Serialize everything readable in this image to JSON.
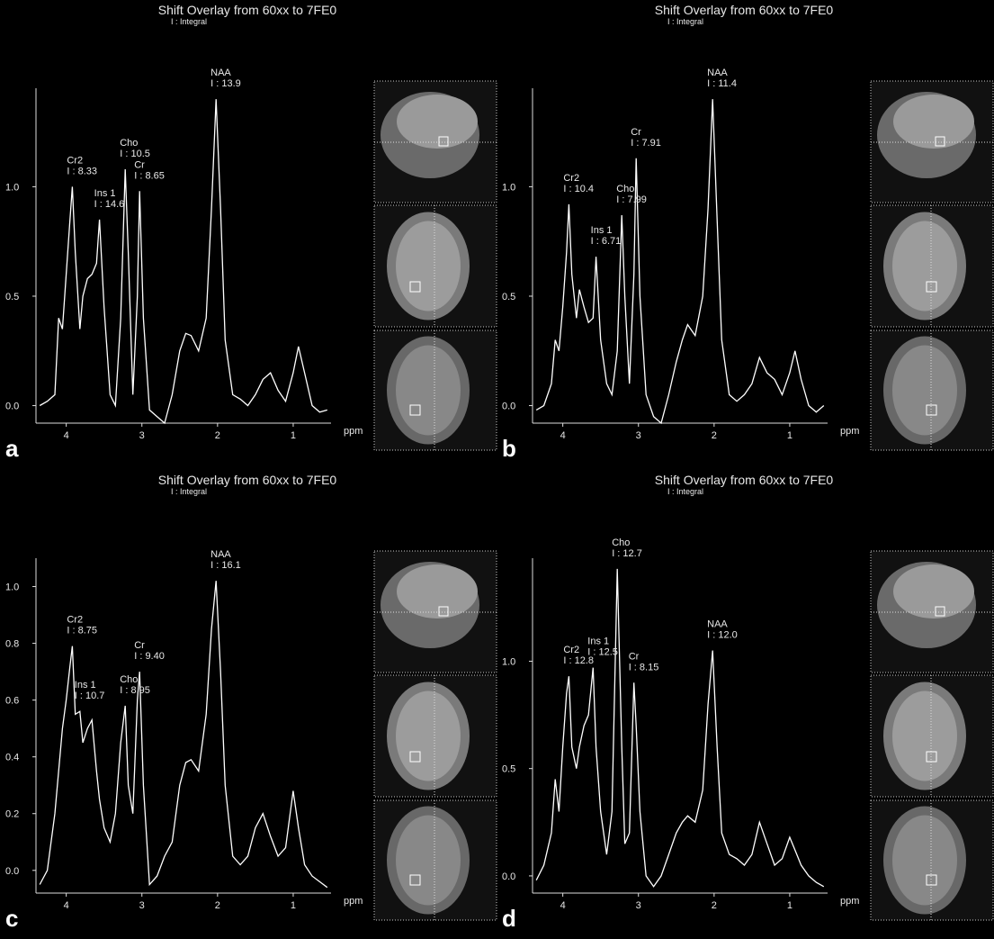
{
  "chart_data": [
    {
      "type": "line",
      "title": "Shift Overlay from 60xx to 7FE0",
      "subtitle": "I : Integral",
      "panel_label": "a",
      "x_label": "ppm",
      "color": "#ffffff",
      "xlim": [
        4.4,
        0.5
      ],
      "xticks": [
        4,
        3,
        2,
        1
      ],
      "ylim": [
        -0.08,
        1.45
      ],
      "yticks": [
        {
          "value": 0,
          "label": "0.0"
        },
        0.5,
        {
          "value": 1,
          "label": "1.0"
        }
      ],
      "x": [
        4.35,
        4.25,
        4.15,
        4.1,
        4.05,
        4.0,
        3.95,
        3.92,
        3.88,
        3.82,
        3.78,
        3.72,
        3.66,
        3.6,
        3.56,
        3.5,
        3.42,
        3.35,
        3.28,
        3.22,
        3.18,
        3.12,
        3.06,
        3.03,
        2.98,
        2.9,
        2.8,
        2.7,
        2.6,
        2.5,
        2.42,
        2.35,
        2.25,
        2.15,
        2.08,
        2.02,
        1.96,
        1.9,
        1.8,
        1.7,
        1.6,
        1.5,
        1.4,
        1.3,
        1.2,
        1.1,
        1.0,
        0.93,
        0.85,
        0.75,
        0.65,
        0.55
      ],
      "values": [
        0.0,
        0.02,
        0.05,
        0.4,
        0.35,
        0.6,
        0.85,
        1.0,
        0.7,
        0.35,
        0.5,
        0.58,
        0.6,
        0.65,
        0.85,
        0.45,
        0.05,
        0.0,
        0.4,
        1.08,
        0.7,
        0.05,
        0.5,
        0.98,
        0.4,
        -0.02,
        -0.05,
        -0.08,
        0.05,
        0.25,
        0.33,
        0.32,
        0.25,
        0.4,
        0.9,
        1.4,
        0.9,
        0.3,
        0.05,
        0.03,
        0.0,
        0.05,
        0.12,
        0.15,
        0.07,
        0.02,
        0.15,
        0.27,
        0.15,
        0.0,
        -0.03,
        -0.02
      ],
      "annotations": [
        {
          "name": "Cr2",
          "integral": "I : 8.33",
          "x": 3.92
        },
        {
          "name": "Ins 1",
          "integral": "I : 14.6",
          "x": 3.56
        },
        {
          "name": "Cho",
          "integral": "I : 10.5",
          "x": 3.22
        },
        {
          "name": "Cr",
          "integral": "I : 8.65",
          "x": 3.03
        },
        {
          "name": "NAA",
          "integral": "I : 13.9",
          "x": 2.02
        }
      ]
    },
    {
      "type": "line",
      "title": "Shift Overlay from 60xx to 7FE0",
      "subtitle": "I : Integral",
      "panel_label": "b",
      "x_label": "ppm",
      "color": "#ffffff",
      "xlim": [
        4.4,
        0.5
      ],
      "xticks": [
        4,
        3,
        2,
        1
      ],
      "ylim": [
        -0.08,
        1.45
      ],
      "yticks": [
        {
          "value": 0,
          "label": "0.0"
        },
        0.5,
        {
          "value": 1,
          "label": "1.0"
        }
      ],
      "x": [
        4.35,
        4.25,
        4.15,
        4.1,
        4.05,
        4.0,
        3.95,
        3.92,
        3.88,
        3.82,
        3.78,
        3.72,
        3.66,
        3.6,
        3.56,
        3.5,
        3.42,
        3.35,
        3.28,
        3.22,
        3.18,
        3.12,
        3.06,
        3.03,
        2.98,
        2.9,
        2.8,
        2.7,
        2.6,
        2.5,
        2.42,
        2.35,
        2.25,
        2.15,
        2.08,
        2.02,
        1.96,
        1.9,
        1.8,
        1.7,
        1.6,
        1.5,
        1.4,
        1.3,
        1.2,
        1.1,
        1.0,
        0.93,
        0.85,
        0.75,
        0.65,
        0.55
      ],
      "values": [
        -0.02,
        0.0,
        0.1,
        0.3,
        0.25,
        0.45,
        0.7,
        0.92,
        0.6,
        0.4,
        0.53,
        0.45,
        0.38,
        0.4,
        0.68,
        0.3,
        0.1,
        0.05,
        0.25,
        0.87,
        0.5,
        0.1,
        0.6,
        1.13,
        0.5,
        0.05,
        -0.05,
        -0.08,
        0.05,
        0.2,
        0.3,
        0.37,
        0.32,
        0.5,
        0.9,
        1.4,
        0.85,
        0.3,
        0.05,
        0.02,
        0.05,
        0.1,
        0.22,
        0.15,
        0.12,
        0.05,
        0.15,
        0.25,
        0.12,
        0.0,
        -0.03,
        0.0
      ],
      "annotations": [
        {
          "name": "Cr2",
          "integral": "I : 10.4",
          "x": 3.92
        },
        {
          "name": "Ins 1",
          "integral": "I : 6.71",
          "x": 3.56
        },
        {
          "name": "Cho",
          "integral": "I : 7.99",
          "x": 3.22
        },
        {
          "name": "Cr",
          "integral": "I : 7.91",
          "x": 3.03
        },
        {
          "name": "NAA",
          "integral": "I : 11.4",
          "x": 2.02
        }
      ]
    },
    {
      "type": "line",
      "title": "Shift Overlay from 60xx to 7FE0",
      "subtitle": "I : Integral",
      "panel_label": "c",
      "x_label": "ppm",
      "color": "#ffffff",
      "xlim": [
        4.4,
        0.5
      ],
      "xticks": [
        4,
        3,
        2,
        1
      ],
      "ylim": [
        -0.08,
        1.1
      ],
      "yticks": [
        {
          "value": 0,
          "label": "0.0"
        },
        0.2,
        0.4,
        0.6,
        0.8,
        {
          "value": 1,
          "label": "1.0"
        }
      ],
      "x": [
        4.35,
        4.25,
        4.15,
        4.1,
        4.05,
        4.0,
        3.95,
        3.92,
        3.88,
        3.82,
        3.78,
        3.72,
        3.66,
        3.6,
        3.56,
        3.5,
        3.42,
        3.35,
        3.28,
        3.22,
        3.18,
        3.12,
        3.06,
        3.03,
        2.98,
        2.9,
        2.8,
        2.7,
        2.6,
        2.5,
        2.42,
        2.35,
        2.25,
        2.15,
        2.08,
        2.02,
        1.96,
        1.9,
        1.8,
        1.7,
        1.6,
        1.5,
        1.4,
        1.3,
        1.2,
        1.1,
        1.0,
        0.93,
        0.85,
        0.75,
        0.65,
        0.55
      ],
      "values": [
        -0.05,
        0.0,
        0.2,
        0.35,
        0.5,
        0.6,
        0.72,
        0.79,
        0.55,
        0.56,
        0.45,
        0.5,
        0.53,
        0.35,
        0.25,
        0.15,
        0.1,
        0.2,
        0.45,
        0.58,
        0.3,
        0.2,
        0.6,
        0.7,
        0.3,
        -0.05,
        -0.02,
        0.05,
        0.1,
        0.3,
        0.38,
        0.39,
        0.35,
        0.55,
        0.85,
        1.02,
        0.7,
        0.3,
        0.05,
        0.02,
        0.05,
        0.15,
        0.2,
        0.12,
        0.05,
        0.08,
        0.28,
        0.15,
        0.02,
        -0.02,
        -0.04,
        -0.06
      ],
      "annotations": [
        {
          "name": "Cr2",
          "integral": "I : 8.75",
          "x": 3.92
        },
        {
          "name": "Ins 1",
          "integral": "I : 10.7",
          "x": 3.82
        },
        {
          "name": "Cho",
          "integral": "I : 8.95",
          "x": 3.22
        },
        {
          "name": "Cr",
          "integral": "I : 9.40",
          "x": 3.03
        },
        {
          "name": "NAA",
          "integral": "I : 16.1",
          "x": 2.02
        }
      ]
    },
    {
      "type": "line",
      "title": "Shift Overlay from 60xx to 7FE0",
      "subtitle": "I : Integral",
      "panel_label": "d",
      "x_label": "ppm",
      "color": "#ffffff",
      "xlim": [
        4.4,
        0.5
      ],
      "xticks": [
        4,
        3,
        2,
        1
      ],
      "ylim": [
        -0.08,
        1.48
      ],
      "yticks": [
        {
          "value": 0,
          "label": "0.0"
        },
        0.5,
        {
          "value": 1,
          "label": "1.0"
        }
      ],
      "x": [
        4.35,
        4.25,
        4.15,
        4.1,
        4.05,
        4.0,
        3.95,
        3.92,
        3.88,
        3.82,
        3.78,
        3.72,
        3.66,
        3.6,
        3.56,
        3.5,
        3.42,
        3.35,
        3.28,
        3.22,
        3.18,
        3.12,
        3.06,
        3.03,
        2.98,
        2.9,
        2.8,
        2.7,
        2.6,
        2.5,
        2.42,
        2.35,
        2.25,
        2.15,
        2.08,
        2.02,
        1.96,
        1.9,
        1.8,
        1.7,
        1.6,
        1.5,
        1.4,
        1.3,
        1.2,
        1.1,
        1.0,
        0.93,
        0.85,
        0.75,
        0.65,
        0.55
      ],
      "values": [
        -0.02,
        0.05,
        0.2,
        0.45,
        0.3,
        0.6,
        0.85,
        0.93,
        0.6,
        0.5,
        0.6,
        0.7,
        0.75,
        0.97,
        0.6,
        0.3,
        0.1,
        0.3,
        1.43,
        0.6,
        0.15,
        0.2,
        0.9,
        0.7,
        0.3,
        0.0,
        -0.05,
        0.0,
        0.1,
        0.2,
        0.25,
        0.28,
        0.25,
        0.4,
        0.8,
        1.05,
        0.6,
        0.2,
        0.1,
        0.08,
        0.05,
        0.1,
        0.25,
        0.15,
        0.05,
        0.08,
        0.18,
        0.12,
        0.05,
        0.0,
        -0.03,
        -0.05
      ],
      "annotations": [
        {
          "name": "Cr2",
          "integral": "I : 12.8",
          "x": 3.92
        },
        {
          "name": "Ins 1",
          "integral": "I : 12.5",
          "x": 3.6
        },
        {
          "name": "Cho",
          "integral": "I : 12.7",
          "x": 3.28
        },
        {
          "name": "Cr",
          "integral": "I : 8.15",
          "x": 3.06
        },
        {
          "name": "NAA",
          "integral": "I : 12.0",
          "x": 2.02
        }
      ]
    }
  ]
}
